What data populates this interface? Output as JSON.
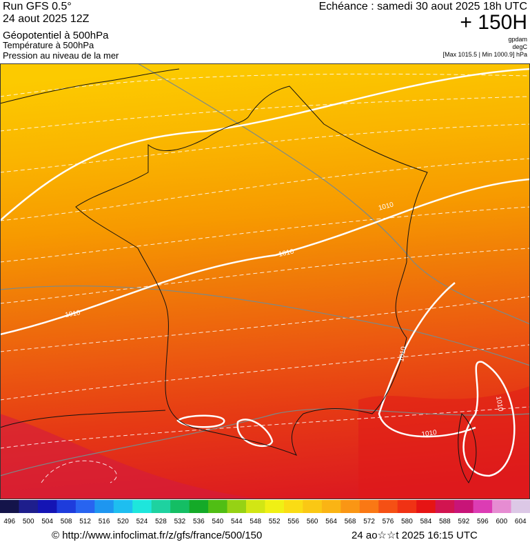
{
  "header": {
    "run": "Run GFS 0.5°",
    "run_date": "24 aout 2025 12Z",
    "line1": "Géopotentiel à 500hPa",
    "line2": "Température à 500hPa",
    "line3": "Pression au niveau de la mer",
    "valid": "Echéance : samedi 30 aout 2025 18h UTC",
    "lead": "+ 150H",
    "unit1": "gpdam",
    "unit2": "degC",
    "unit3": "[Max 1015.5 | Min 1000.9] hPa"
  },
  "map": {
    "contour_labels": [
      "1010",
      "1010",
      "1010",
      "1010",
      "1010",
      "1010"
    ]
  },
  "colorbar": {
    "labels": [
      496,
      500,
      504,
      508,
      512,
      516,
      520,
      524,
      528,
      532,
      536,
      540,
      544,
      548,
      552,
      556,
      560,
      564,
      568,
      572,
      576,
      580,
      584,
      588,
      592,
      596,
      600,
      604
    ],
    "colors": [
      "#14144a",
      "#1e1e8c",
      "#1414b4",
      "#1e3cdc",
      "#2864f0",
      "#1e96f0",
      "#1ebef0",
      "#1ee6dc",
      "#1ed2a0",
      "#14be64",
      "#14aa28",
      "#50be14",
      "#96d214",
      "#d2e614",
      "#f0f014",
      "#fadc14",
      "#fac814",
      "#fab414",
      "#fa9614",
      "#fa7814",
      "#f55014",
      "#f03214",
      "#e61414",
      "#d21450",
      "#c81478",
      "#dc3cb4",
      "#e68cd2",
      "#dcc8e6"
    ]
  },
  "footer": {
    "source": "© http://www.infoclimat.fr/z/gfs/france/500/150",
    "time": "24 ao☆☆t 2025 16:15 UTC"
  }
}
